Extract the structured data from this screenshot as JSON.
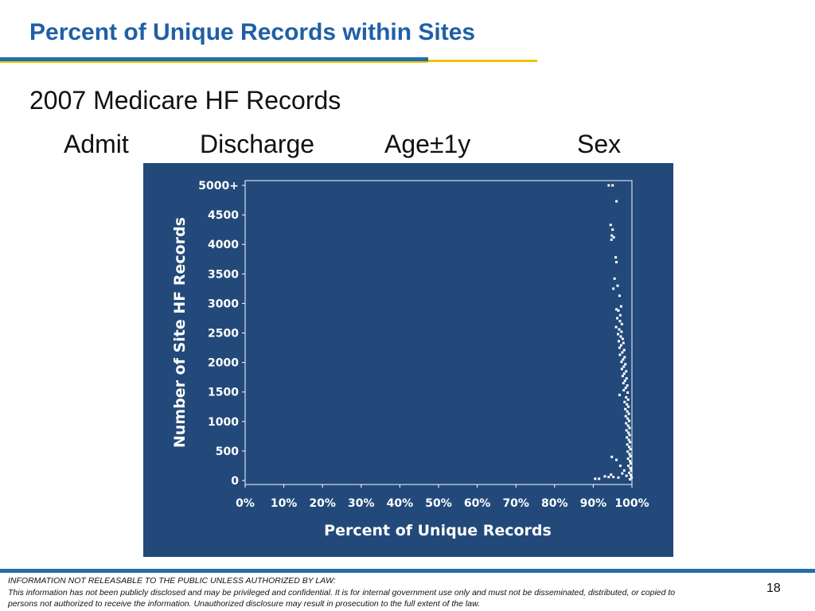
{
  "slide": {
    "title": "Percent of Unique Records within Sites",
    "subtitle": "2007 Medicare HF Records",
    "fields": [
      "Admit",
      "Discharge",
      "Age±1y",
      "Sex"
    ],
    "page_number": "18"
  },
  "footer": {
    "heading": "INFORMATION NOT RELEASABLE TO THE PUBLIC UNLESS AUTHORIZED BY LAW:",
    "text": "This information has not been publicly disclosed and may be privileged and confidential.  It is for internal government use only and must not be disseminated, distributed, or copied to persons not authorized to receive the information.  Unauthorized disclosure may result in prosecution to the full extent of the law."
  },
  "colors": {
    "title": "#1f5fa6",
    "rule_blue": "#1f6fa8",
    "rule_yellow": "#f2c200",
    "panel": "#22497a",
    "footer_bar": "#1f6fa8"
  },
  "chart_data": {
    "type": "scatter",
    "title": "",
    "xlabel": "Percent of Unique Records",
    "ylabel": "Number of Site HF Records",
    "xlim": [
      0,
      100
    ],
    "ylim": [
      0,
      5000
    ],
    "x_ticks": [
      "0%",
      "10%",
      "20%",
      "30%",
      "40%",
      "50%",
      "60%",
      "70%",
      "80%",
      "90%",
      "100%"
    ],
    "y_ticks": [
      "0",
      "500",
      "1000",
      "1500",
      "2000",
      "2500",
      "3000",
      "3500",
      "4000",
      "4500",
      "5000+"
    ],
    "grid": false,
    "legend": "none",
    "points": [
      [
        94.0,
        5000
      ],
      [
        95.0,
        5000
      ],
      [
        96.0,
        4730
      ],
      [
        94.5,
        4330
      ],
      [
        95.0,
        4250
      ],
      [
        94.8,
        4150
      ],
      [
        95.3,
        4120
      ],
      [
        94.7,
        4080
      ],
      [
        95.8,
        3780
      ],
      [
        96.0,
        3700
      ],
      [
        95.5,
        3420
      ],
      [
        96.3,
        3300
      ],
      [
        95.2,
        3250
      ],
      [
        96.8,
        3130
      ],
      [
        97.2,
        2950
      ],
      [
        96.0,
        2900
      ],
      [
        96.5,
        2880
      ],
      [
        97.0,
        2800
      ],
      [
        96.2,
        2750
      ],
      [
        96.9,
        2700
      ],
      [
        97.4,
        2650
      ],
      [
        95.9,
        2600
      ],
      [
        96.7,
        2560
      ],
      [
        97.3,
        2520
      ],
      [
        96.4,
        2480
      ],
      [
        97.1,
        2440
      ],
      [
        97.6,
        2400
      ],
      [
        96.6,
        2360
      ],
      [
        97.8,
        2330
      ],
      [
        97.2,
        2290
      ],
      [
        96.8,
        2250
      ],
      [
        98.0,
        2210
      ],
      [
        97.5,
        2170
      ],
      [
        96.9,
        2130
      ],
      [
        98.1,
        2090
      ],
      [
        97.7,
        2050
      ],
      [
        97.3,
        2010
      ],
      [
        98.3,
        1970
      ],
      [
        97.9,
        1930
      ],
      [
        97.4,
        1890
      ],
      [
        98.5,
        1850
      ],
      [
        98.0,
        1810
      ],
      [
        97.6,
        1770
      ],
      [
        98.6,
        1730
      ],
      [
        98.2,
        1690
      ],
      [
        97.8,
        1650
      ],
      [
        98.8,
        1610
      ],
      [
        98.4,
        1570
      ],
      [
        97.9,
        1530
      ],
      [
        98.9,
        1490
      ],
      [
        96.8,
        1450
      ],
      [
        98.5,
        1410
      ],
      [
        99.0,
        1370
      ],
      [
        98.1,
        1330
      ],
      [
        98.7,
        1290
      ],
      [
        99.1,
        1250
      ],
      [
        98.3,
        1210
      ],
      [
        98.8,
        1170
      ],
      [
        99.2,
        1130
      ],
      [
        98.4,
        1090
      ],
      [
        98.9,
        1050
      ],
      [
        99.3,
        1010
      ],
      [
        98.5,
        970
      ],
      [
        99.0,
        930
      ],
      [
        99.4,
        890
      ],
      [
        98.6,
        850
      ],
      [
        99.1,
        810
      ],
      [
        99.4,
        770
      ],
      [
        98.7,
        730
      ],
      [
        99.2,
        690
      ],
      [
        99.5,
        650
      ],
      [
        98.8,
        610
      ],
      [
        99.3,
        570
      ],
      [
        99.6,
        530
      ],
      [
        98.9,
        490
      ],
      [
        99.4,
        450
      ],
      [
        99.6,
        410
      ],
      [
        99.0,
        370
      ],
      [
        99.5,
        330
      ],
      [
        99.7,
        290
      ],
      [
        99.1,
        250
      ],
      [
        99.6,
        210
      ],
      [
        99.8,
        170
      ],
      [
        99.3,
        130
      ],
      [
        99.7,
        90
      ],
      [
        99.9,
        50
      ],
      [
        99.5,
        20
      ],
      [
        94.8,
        400
      ],
      [
        96.0,
        350
      ],
      [
        97.0,
        250
      ],
      [
        98.0,
        170
      ],
      [
        93.0,
        70
      ],
      [
        94.0,
        60
      ],
      [
        95.2,
        60
      ],
      [
        96.5,
        50
      ],
      [
        90.5,
        30
      ],
      [
        91.5,
        30
      ],
      [
        94.6,
        100
      ],
      [
        97.5,
        120
      ],
      [
        98.6,
        80
      ]
    ]
  }
}
